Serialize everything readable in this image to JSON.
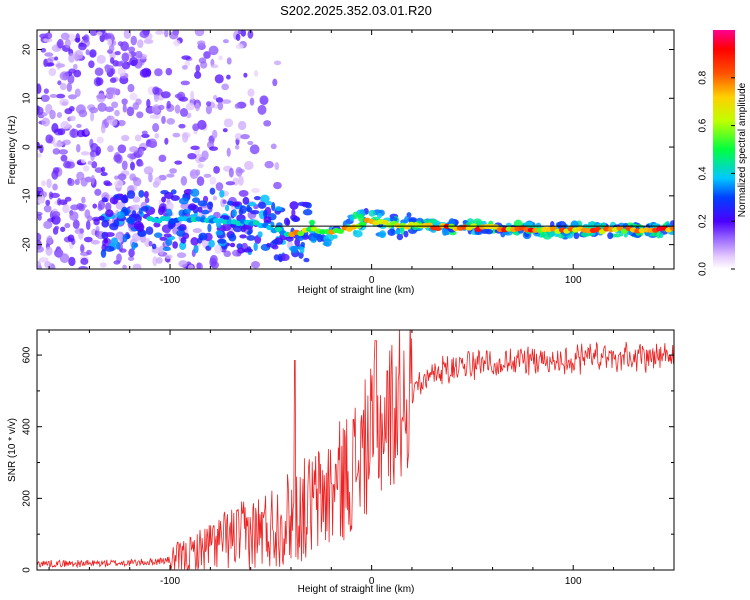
{
  "title": "S202.2025.352.03.01.R20",
  "chart_data": [
    {
      "type": "heatmap",
      "xlabel": "Height of straight line (km)",
      "ylabel": "Frequency (Hz)",
      "xlim": [
        -166,
        150
      ],
      "ylim": [
        -25,
        24
      ],
      "x_ticks": [
        -100,
        0,
        100
      ],
      "y_ticks": [
        20,
        10,
        0,
        -10,
        -20
      ],
      "grid": false,
      "colorbar": {
        "label": "Normalized spectral amplitude",
        "range": [
          0.0,
          1.0
        ],
        "ticks": [
          "0.0",
          "0.2",
          "0.4",
          "0.6",
          "0.8"
        ],
        "colors": [
          "#ffffff",
          "#e0c8ff",
          "#8a2be2",
          "#0000ff",
          "#00ffff",
          "#00ff00",
          "#ffff00",
          "#ff8800",
          "#ff0000",
          "#ff0088"
        ]
      },
      "series": [
        {
          "x": [
            -130,
            -110,
            -90,
            -70,
            -50,
            -40,
            -30,
            -20,
            -10,
            0,
            10,
            20,
            40,
            60,
            80,
            100,
            120,
            150
          ],
          "values": [
            -16,
            -15,
            -15,
            -15,
            -16.5,
            -18,
            -17,
            -17.5,
            -16.5,
            -15,
            -16,
            -16,
            -16.5,
            -16.5,
            -17,
            -17,
            -17,
            -17
          ]
        }
      ]
    },
    {
      "type": "line",
      "xlabel": "Height of straight line (km)",
      "ylabel": "SNR (10 * v/v)",
      "xlim": [
        -166,
        150
      ],
      "ylim": [
        0,
        670
      ],
      "x_ticks": [
        -100,
        0,
        100
      ],
      "y_ticks": [
        0,
        200,
        400,
        600
      ],
      "grid": false,
      "series": [
        {
          "color": "#ee2222",
          "x": [
            -166,
            -140,
            -120,
            -110,
            -100,
            -90,
            -80,
            -70,
            -60,
            -50,
            -40,
            -30,
            -20,
            -10,
            0,
            10,
            20,
            30,
            40,
            50,
            60,
            80,
            100,
            120,
            150
          ],
          "values": [
            18,
            18,
            20,
            22,
            28,
            40,
            70,
            90,
            100,
            120,
            150,
            180,
            220,
            280,
            370,
            440,
            510,
            560,
            585,
            595,
            600,
            610,
            612,
            615,
            615
          ]
        }
      ]
    }
  ]
}
